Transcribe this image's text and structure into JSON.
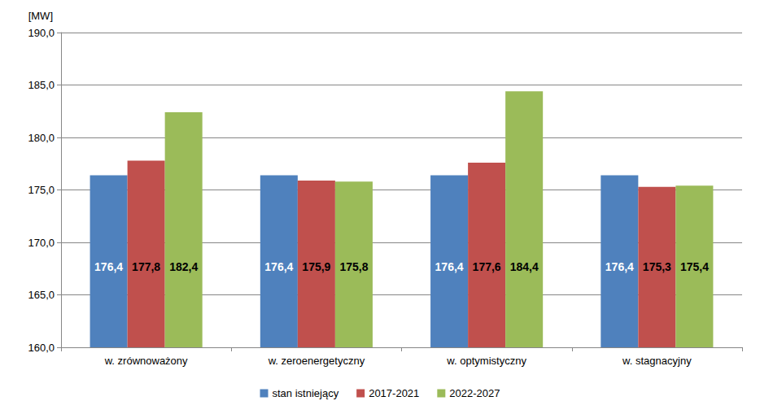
{
  "chart_data": {
    "type": "bar",
    "ylabel": "[MW]",
    "categories": [
      "w. zrównoważony",
      "w. zeroenergetyczny",
      "w. optymistyczny",
      "w. stagnacyjny"
    ],
    "series": [
      {
        "name": "stan istniejący",
        "color": "#4f81bd",
        "values": [
          176.4,
          176.4,
          176.4,
          176.4
        ],
        "value_labels": [
          "176,4",
          "176,4",
          "176,4",
          "176,4"
        ]
      },
      {
        "name": "2017-2021",
        "color": "#c0504d",
        "values": [
          177.8,
          175.9,
          177.6,
          175.3
        ],
        "value_labels": [
          "177,8",
          "175,9",
          "177,6",
          "175,3"
        ]
      },
      {
        "name": "2022-2027",
        "color": "#9bbb59",
        "values": [
          182.4,
          175.8,
          184.4,
          175.4
        ],
        "value_labels": [
          "182,4",
          "175,8",
          "184,4",
          "175,4"
        ]
      }
    ],
    "ylim": [
      160,
      190
    ],
    "yticks": [
      {
        "value": 160,
        "label": "160,0"
      },
      {
        "value": 165,
        "label": "165,0"
      },
      {
        "value": 170,
        "label": "170,0"
      },
      {
        "value": 175,
        "label": "175,0"
      },
      {
        "value": 180,
        "label": "180,0"
      },
      {
        "value": 185,
        "label": "185,0"
      },
      {
        "value": 190,
        "label": "190,0"
      }
    ],
    "grid": true,
    "legend": "bottom",
    "data_labels": true
  }
}
